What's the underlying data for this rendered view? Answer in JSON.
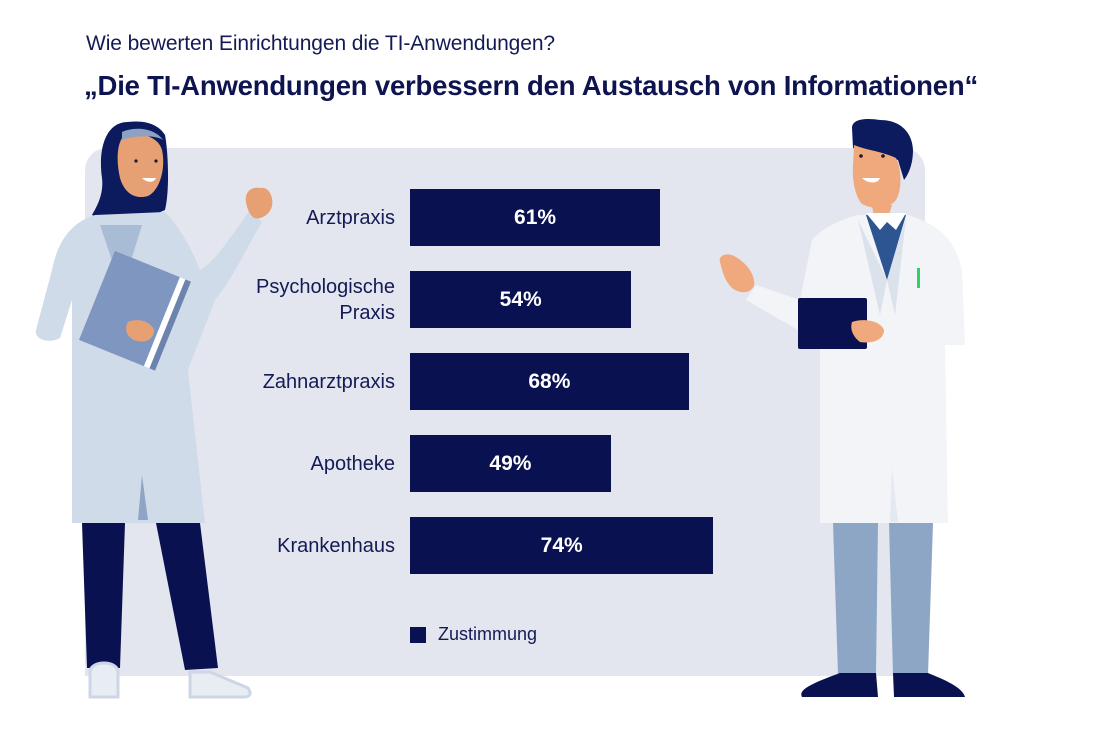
{
  "header": {
    "subtitle": "Wie bewerten Einrichtungen die TI-Anwendungen?",
    "title": "„Die TI-Anwendungen verbessern den Austausch von Informationen“"
  },
  "colors": {
    "bar": "#0a1151",
    "panel": "#e4e6ef",
    "text": "#141a55",
    "bar_text": "#ffffff"
  },
  "illustrations": {
    "left": "female-doctor-with-hijab-holding-folder",
    "right": "male-doctor-holding-tablet"
  },
  "chart_data": {
    "type": "bar",
    "orientation": "horizontal",
    "title": "„Die TI-Anwendungen verbessern den Austausch von Informationen“",
    "subtitle": "Wie bewerten Einrichtungen die TI-Anwendungen?",
    "categories": [
      "Arztpraxis",
      "Psychologische Praxis",
      "Zahnarztpraxis",
      "Apotheke",
      "Krankenhaus"
    ],
    "category_lines": [
      [
        "Arztpraxis"
      ],
      [
        "Psychologische",
        "Praxis"
      ],
      [
        "Zahnarztpraxis"
      ],
      [
        "Apotheke"
      ],
      [
        "Krankenhaus"
      ]
    ],
    "series": [
      {
        "name": "Zustimmung",
        "values": [
          61,
          54,
          68,
          49,
          74
        ]
      }
    ],
    "value_labels": [
      "61%",
      "54%",
      "68%",
      "49%",
      "74%"
    ],
    "unit": "%",
    "xlim": [
      0,
      100
    ],
    "xlabel": "",
    "ylabel": "",
    "grid": false,
    "legend": {
      "position": "bottom-left",
      "entries": [
        "Zustimmung"
      ]
    }
  }
}
